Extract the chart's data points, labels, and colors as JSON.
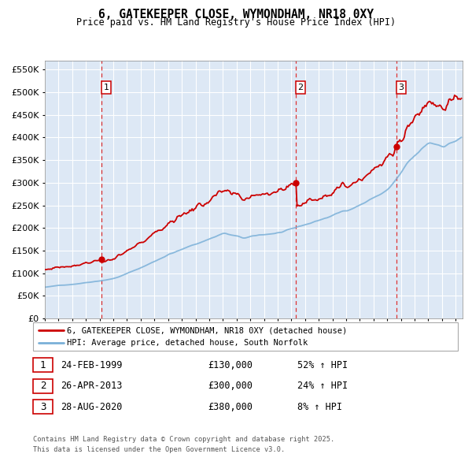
{
  "title": "6, GATEKEEPER CLOSE, WYMONDHAM, NR18 0XY",
  "subtitle": "Price paid vs. HM Land Registry's House Price Index (HPI)",
  "background_color": "#dce9f5",
  "plot_bg_color": "#dde8f5",
  "grid_color": "#ffffff",
  "ylim": [
    0,
    570000
  ],
  "yticks": [
    0,
    50000,
    100000,
    150000,
    200000,
    250000,
    300000,
    350000,
    400000,
    450000,
    500000,
    550000
  ],
  "sale_dates": [
    1999.14,
    2013.32,
    2020.66
  ],
  "sale_prices": [
    130000,
    300000,
    380000
  ],
  "sale_labels": [
    "1",
    "2",
    "3"
  ],
  "sale_info": [
    {
      "num": "1",
      "date": "24-FEB-1999",
      "price": "£130,000",
      "hpi": "52% ↑ HPI"
    },
    {
      "num": "2",
      "date": "26-APR-2013",
      "price": "£300,000",
      "hpi": "24% ↑ HPI"
    },
    {
      "num": "3",
      "date": "28-AUG-2020",
      "price": "£380,000",
      "hpi": "8% ↑ HPI"
    }
  ],
  "legend_entries": [
    "6, GATEKEEPER CLOSE, WYMONDHAM, NR18 0XY (detached house)",
    "HPI: Average price, detached house, South Norfolk"
  ],
  "footer": "Contains HM Land Registry data © Crown copyright and database right 2025.\nThis data is licensed under the Open Government Licence v3.0.",
  "red_line_color": "#cc0000",
  "blue_line_color": "#7ab0d8",
  "marker_color": "#cc0000",
  "dashed_line_color": "#dd3333"
}
